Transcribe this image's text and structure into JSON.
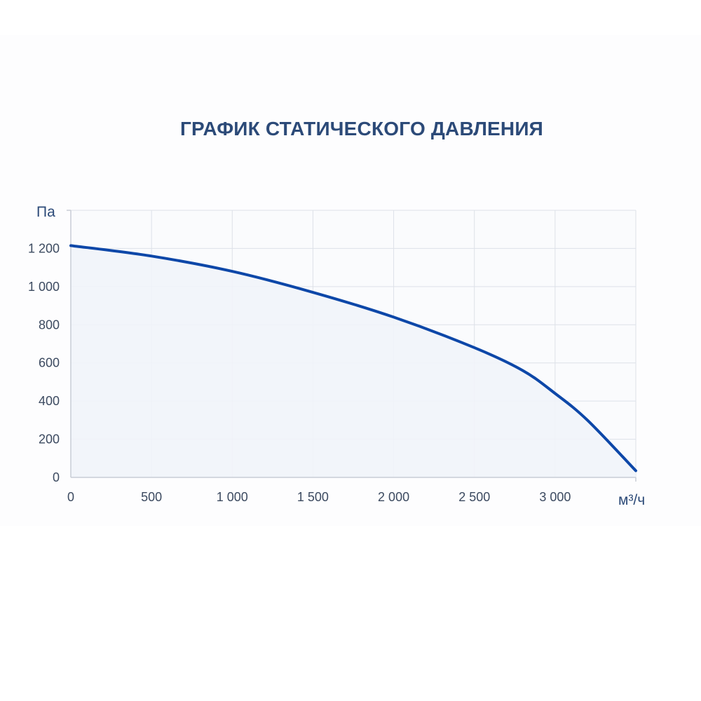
{
  "chart_data": {
    "type": "area",
    "title": "ГРАФИК СТАТИЧЕСКОГО ДАВЛЕНИЯ",
    "xlabel": "м³/ч",
    "ylabel": "Па",
    "xlim": [
      0,
      3500
    ],
    "ylim": [
      0,
      1400
    ],
    "x_ticks": [
      0,
      500,
      1000,
      1500,
      2000,
      2500,
      3000
    ],
    "x_tick_labels": [
      "0",
      "500",
      "1 000",
      "1 500",
      "2 000",
      "2 500",
      "3 000"
    ],
    "y_ticks": [
      0,
      200,
      400,
      600,
      800,
      1000,
      1200
    ],
    "y_tick_labels": [
      "0",
      "200",
      "400",
      "600",
      "800",
      "1 000",
      "1 200"
    ],
    "grid": true,
    "series": [
      {
        "x": [
          0,
          500,
          1000,
          1500,
          2000,
          2500,
          2800,
          3000,
          3200,
          3500
        ],
        "y": [
          1215,
          1160,
          1080,
          970,
          840,
          680,
          560,
          440,
          300,
          35
        ]
      }
    ],
    "colors": {
      "line": "#0d47a8",
      "fill": "#f1f4fa",
      "grid": "#dde1e8",
      "axis": "#c8cdd6",
      "title": "#2c4a78"
    }
  }
}
